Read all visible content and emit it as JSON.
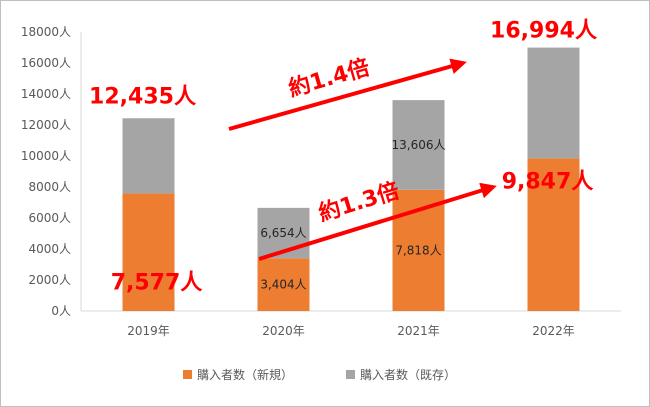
{
  "chart_data": {
    "type": "bar",
    "stacked": true,
    "categories": [
      "2019年",
      "2020年",
      "2021年",
      "2022年"
    ],
    "series": [
      {
        "name": "購入者数（新規）",
        "color": "#ed7d31",
        "values": [
          7577,
          3404,
          7818,
          9847
        ]
      },
      {
        "name": "購入者数（既存）",
        "color": "#a5a5a5",
        "values": [
          4858,
          3250,
          5788,
          7147
        ]
      }
    ],
    "ylim": [
      0,
      18000
    ],
    "ytick_step": 2000,
    "ytick_suffix": "人",
    "gridlines": false,
    "legend_position": "bottom",
    "data_labels": {
      "new": [
        "7,577人",
        "3,404人",
        "7,818人",
        "9,847人"
      ],
      "total": [
        "12,435人",
        "6,654人",
        "13,606人",
        "16,994人"
      ]
    },
    "annotations": {
      "arrow_upper": "約1.4倍",
      "arrow_lower": "約1.3倍",
      "arrow_color": "#ff0000"
    }
  }
}
